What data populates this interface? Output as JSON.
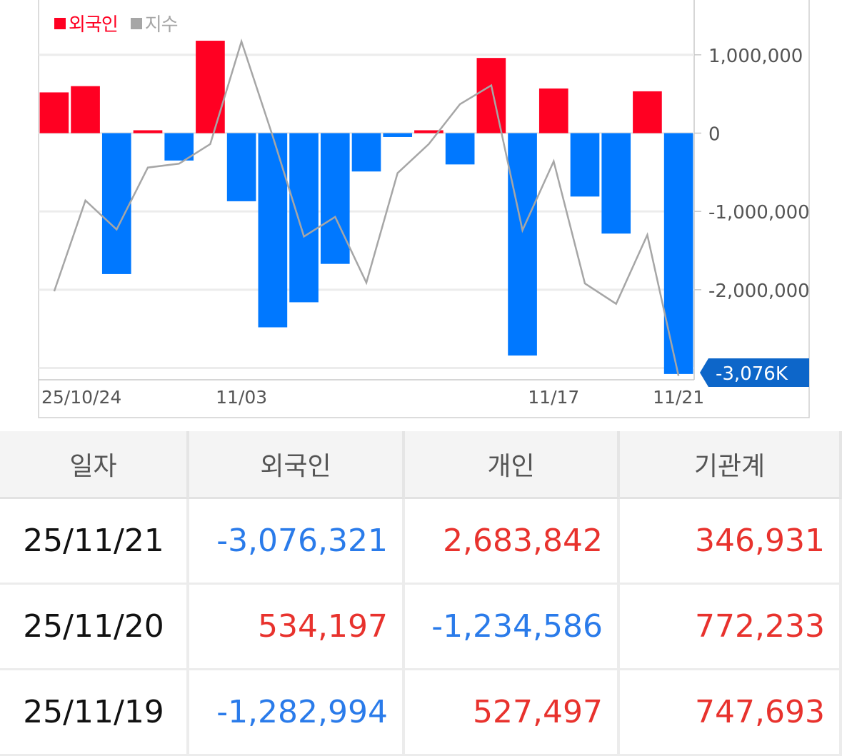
{
  "chart": {
    "legend": [
      {
        "label": "외국인",
        "color": "#ff0022"
      },
      {
        "label": "지수",
        "color": "#a6a6a6"
      }
    ],
    "colors": {
      "positive": "#ff0022",
      "negative": "#0078ff",
      "index_line": "#a6a6a6",
      "callout": "#0d66c9"
    },
    "callout_label": "-3,076K",
    "y_ticks": [
      {
        "value": 1000000,
        "label": "1,000,000"
      },
      {
        "value": 0,
        "label": "0"
      },
      {
        "value": -1000000,
        "label": "-1,000,000"
      },
      {
        "value": -2000000,
        "label": "-2,000,000"
      }
    ],
    "x_ticks": [
      {
        "index": 0,
        "label": "25/10/24"
      },
      {
        "index": 6,
        "label": "11/03"
      },
      {
        "index": 16,
        "label": "11/17"
      },
      {
        "index": 20,
        "label": "11/21"
      }
    ]
  },
  "chart_data": {
    "type": "bar",
    "ylim": [
      -3150000,
      1700000
    ],
    "series": [
      {
        "name": "외국인",
        "values": [
          520000,
          600000,
          -1800000,
          20000,
          -350000,
          1180000,
          -870000,
          -2480000,
          -2160000,
          -1670000,
          -490000,
          -50000,
          20000,
          -400000,
          960000,
          -2840000,
          570000,
          -810000,
          -1283000,
          534000,
          -3076000
        ]
      },
      {
        "name": "지수",
        "values": [
          -2020000,
          -860000,
          -1230000,
          -440000,
          -390000,
          -140000,
          1170000,
          -40000,
          -1320000,
          -1070000,
          -1910000,
          -510000,
          -140000,
          370000,
          610000,
          -1240000,
          -360000,
          -1920000,
          -2180000,
          -1300000,
          -3100000
        ]
      }
    ]
  },
  "table": {
    "headers": [
      "일자",
      "외국인",
      "개인",
      "기관계"
    ],
    "rows": [
      [
        {
          "text": "25/11/21"
        },
        {
          "text": "-3,076,321",
          "sign": "neg"
        },
        {
          "text": "2,683,842",
          "sign": "pos"
        },
        {
          "text": "346,931",
          "sign": "pos"
        }
      ],
      [
        {
          "text": "25/11/20"
        },
        {
          "text": "534,197",
          "sign": "pos"
        },
        {
          "text": "-1,234,586",
          "sign": "neg"
        },
        {
          "text": "772,233",
          "sign": "pos"
        }
      ],
      [
        {
          "text": "25/11/19"
        },
        {
          "text": "-1,282,994",
          "sign": "neg"
        },
        {
          "text": "527,497",
          "sign": "pos"
        },
        {
          "text": "747,693",
          "sign": "pos"
        }
      ]
    ]
  }
}
